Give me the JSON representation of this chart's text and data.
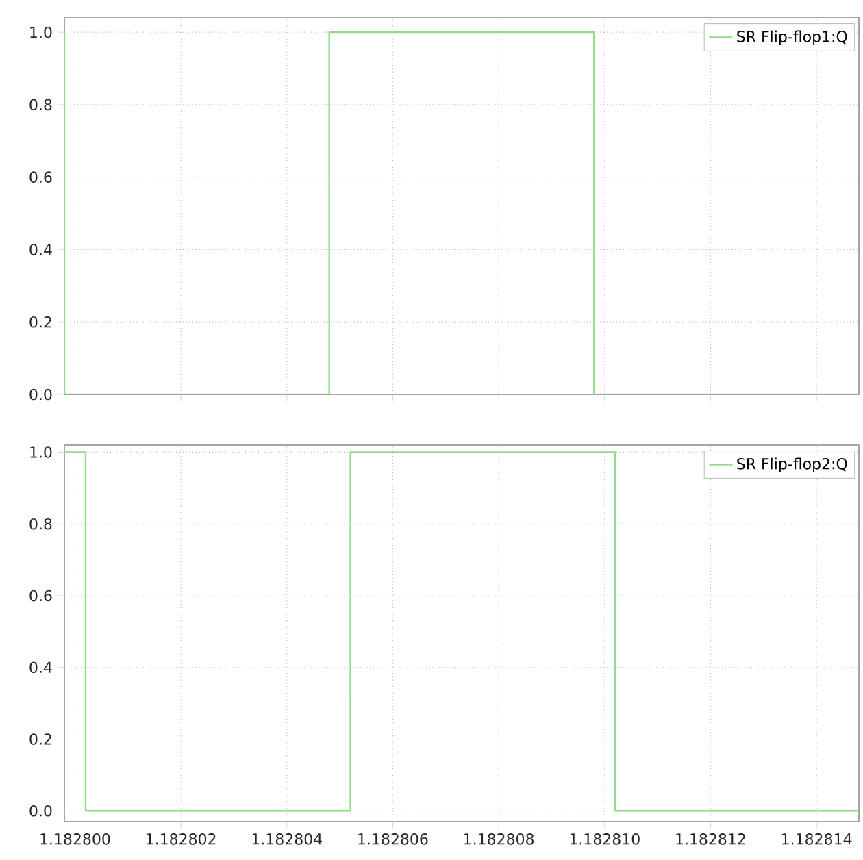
{
  "chart_data": [
    {
      "type": "step",
      "xlim": [
        1.1827998,
        1.1828148
      ],
      "ylim": [
        0,
        1.04
      ],
      "xticks": [
        {
          "value": 1.1828,
          "label": null
        },
        {
          "value": 1.182802,
          "label": null
        },
        {
          "value": 1.182804,
          "label": null
        },
        {
          "value": 1.182806,
          "label": null
        },
        {
          "value": 1.182808,
          "label": null
        },
        {
          "value": 1.18281,
          "label": null
        },
        {
          "value": 1.182812,
          "label": null
        },
        {
          "value": 1.182814,
          "label": null
        }
      ],
      "yticks": [
        {
          "value": 0,
          "label": "0.0"
        },
        {
          "value": 0.2,
          "label": "0.2"
        },
        {
          "value": 0.4,
          "label": "0.4"
        },
        {
          "value": 0.6,
          "label": "0.6"
        },
        {
          "value": 0.8,
          "label": "0.8"
        },
        {
          "value": 1,
          "label": "1.0"
        }
      ],
      "tick_labels": "y",
      "grid": true,
      "legend": "top right",
      "marker": "none",
      "line_style": "solid",
      "series": [
        {
          "name": "SR Flip-flop1:Q",
          "color": "#90dc88",
          "x": [
            1.1827998,
            1.1827998,
            1.1828048,
            1.1828098,
            1.1828148
          ],
          "values": [
            1,
            0,
            1,
            0,
            0
          ]
        }
      ]
    },
    {
      "type": "step",
      "xlim": [
        1.1827998,
        1.1828148
      ],
      "ylim": [
        -0.03,
        1.02
      ],
      "xticks": [
        {
          "value": 1.1828,
          "label": "1.182800"
        },
        {
          "value": 1.182802,
          "label": "1.182802"
        },
        {
          "value": 1.182804,
          "label": "1.182804"
        },
        {
          "value": 1.182806,
          "label": "1.182806"
        },
        {
          "value": 1.182808,
          "label": "1.182808"
        },
        {
          "value": 1.18281,
          "label": "1.182810"
        },
        {
          "value": 1.182812,
          "label": "1.182812"
        },
        {
          "value": 1.182814,
          "label": "1.182814"
        }
      ],
      "yticks": [
        {
          "value": 0,
          "label": "0.0"
        },
        {
          "value": 0.2,
          "label": "0.2"
        },
        {
          "value": 0.4,
          "label": "0.4"
        },
        {
          "value": 0.6,
          "label": "0.6"
        },
        {
          "value": 0.8,
          "label": "0.8"
        },
        {
          "value": 1,
          "label": "1.0"
        }
      ],
      "grid": true,
      "legend": "top right",
      "marker": "none",
      "line_style": "solid",
      "series": [
        {
          "name": "SR Flip-flop2:Q",
          "color": "#90dc88",
          "x": [
            1.1827998,
            1.1828002,
            1.1828052,
            1.1828102,
            1.1828148
          ],
          "values": [
            1,
            0,
            1,
            0,
            0
          ]
        }
      ]
    }
  ]
}
